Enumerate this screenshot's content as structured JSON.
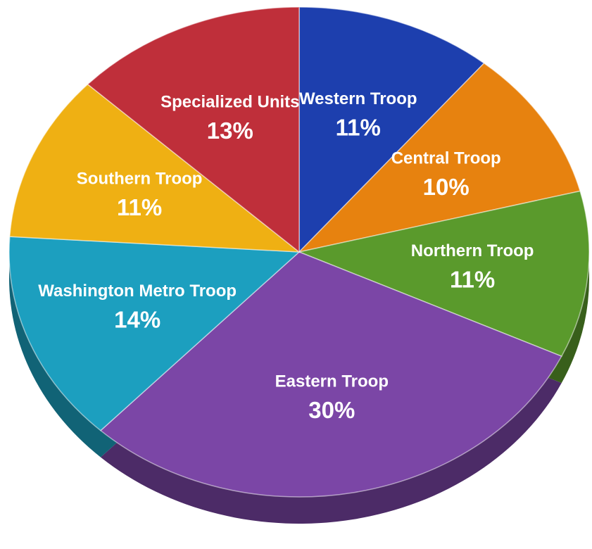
{
  "chart_data": {
    "type": "pie",
    "categories": [
      "Western Troop",
      "Central Troop",
      "Northern Troop",
      "Eastern Troop",
      "Washington Metro Troop",
      "Southern Troop",
      "Specialized Units"
    ],
    "values": [
      11,
      10,
      11,
      30,
      14,
      11,
      13
    ],
    "value_labels": [
      "11%",
      "10%",
      "11%",
      "30%",
      "14%",
      "11%",
      "13%"
    ],
    "colors": [
      "#1d3fae",
      "#e7820f",
      "#5a9a2c",
      "#7b46a6",
      "#1c9fbf",
      "#efb013",
      "#bf2f3a"
    ]
  }
}
